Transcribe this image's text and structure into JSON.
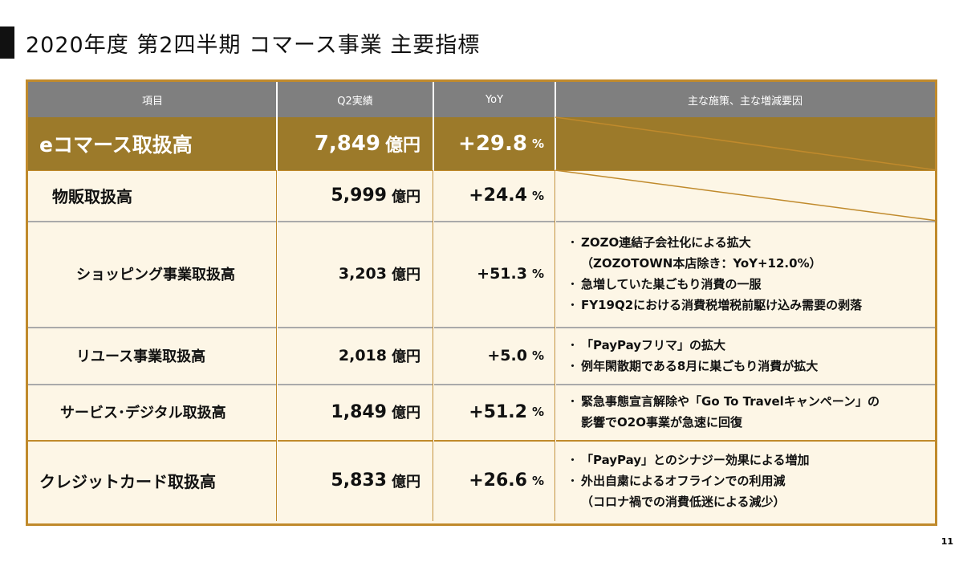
{
  "header": {
    "title": "2020年度 第2四半期 コマース事業 主要指標"
  },
  "table": {
    "columns": [
      "項目",
      "Q2実績",
      "YoY",
      "主な施策、主な増減要因"
    ],
    "rows": [
      {
        "item": "eコマース取扱高",
        "amount": "7,849",
        "unit": "億円",
        "yoy": "+29.8",
        "yoy_unit": "%",
        "notes": []
      },
      {
        "item": "物販取扱高",
        "amount": "5,999",
        "unit": "億円",
        "yoy": "+24.4",
        "yoy_unit": "%",
        "notes": []
      },
      {
        "item": "ショッピング事業取扱高",
        "amount": "3,203",
        "unit": "億円",
        "yoy": "+51.3",
        "yoy_unit": "%",
        "notes": [
          [
            "ZOZO連結子会社化による拡大",
            "（ZOZOTOWN本店除き：YoY+12.0%）"
          ],
          [
            "急増していた巣ごもり消費の一服"
          ],
          [
            "FY19Q2における消費税増税前駆け込み需要の剥落"
          ]
        ]
      },
      {
        "item": "リユース事業取扱高",
        "amount": "2,018",
        "unit": "億円",
        "yoy": "+5.0",
        "yoy_unit": "%",
        "notes": [
          [
            "「PayPayフリマ」の拡大"
          ],
          [
            "例年閑散期である8月に巣ごもり消費が拡大"
          ]
        ]
      },
      {
        "item": "サービス･デジタル取扱高",
        "amount": "1,849",
        "unit": "億円",
        "yoy": "+51.2",
        "yoy_unit": "%",
        "notes": [
          [
            "緊急事態宣言解除や「Go To Travelキャンペーン」の",
            "影響でO2O事業が急速に回復"
          ]
        ]
      },
      {
        "item": "クレジットカード取扱高",
        "amount": "5,833",
        "unit": "億円",
        "yoy": "+26.6",
        "yoy_unit": "%",
        "notes": [
          [
            "「PayPay」とのシナジー効果による増加"
          ],
          [
            "外出自粛によるオフラインでの利用減",
            "（コロナ禍での消費低迷による減少）"
          ]
        ]
      }
    ]
  },
  "footer": {
    "page": "11"
  }
}
